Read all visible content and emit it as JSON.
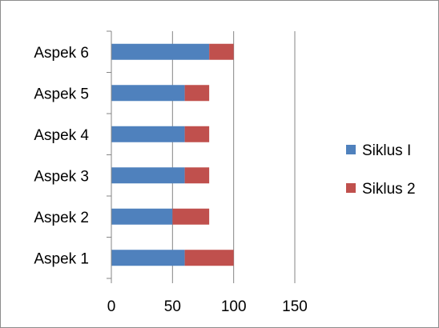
{
  "chart_data": {
    "type": "bar",
    "orientation": "horizontal",
    "stacked": true,
    "categories": [
      "Aspek 1",
      "Aspek 2",
      "Aspek 3",
      "Aspek 4",
      "Aspek 5",
      "Aspek 6"
    ],
    "series": [
      {
        "name": "Siklus I",
        "values": [
          60,
          50,
          60,
          60,
          60,
          80
        ],
        "color": "#4F81BD"
      },
      {
        "name": "Siklus 2",
        "values": [
          40,
          30,
          20,
          20,
          20,
          20
        ],
        "color": "#C0504D"
      }
    ],
    "xlim": [
      0,
      150
    ],
    "xticks": [
      0,
      50,
      100,
      150
    ],
    "grid": "vertical",
    "legend": "right",
    "title": "",
    "xlabel": "",
    "ylabel": ""
  }
}
